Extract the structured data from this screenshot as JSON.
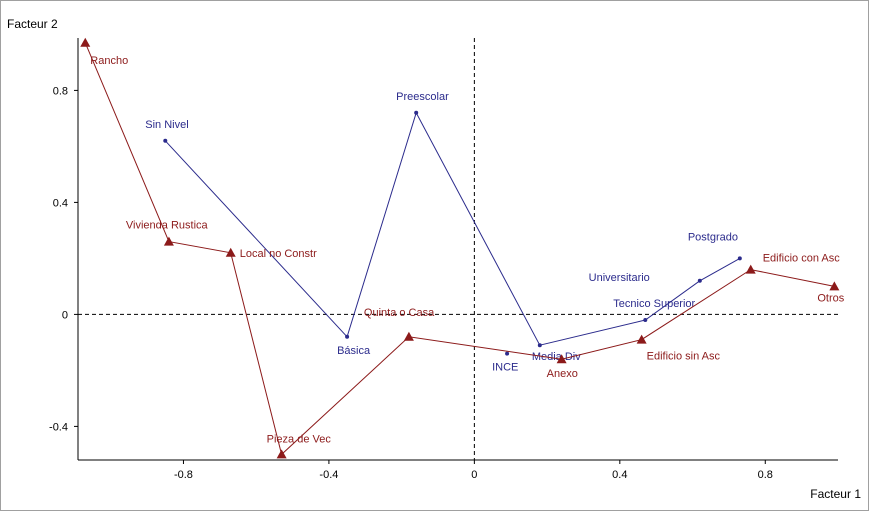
{
  "chart_data": {
    "type": "scatter",
    "title": "",
    "xlabel": "Facteur 1",
    "ylabel": "Facteur 2",
    "xlim": [
      -1.09,
      1.0
    ],
    "ylim": [
      -0.52,
      0.98
    ],
    "xticks": [
      -0.8,
      -0.4,
      0,
      0.4,
      0.8
    ],
    "xtick_labels": [
      "-0.8",
      "-0.4",
      "0",
      "0.4",
      "0.8"
    ],
    "yticks": [
      -0.4,
      0,
      0.4,
      0.8
    ],
    "ytick_labels": [
      "-0.4",
      "0",
      "0.4",
      "0.8"
    ],
    "grid": false,
    "reference_lines": {
      "x": 0,
      "y": 0,
      "style": "dashed"
    },
    "colors": {
      "series1": "#2b2b8c",
      "series2": "#8c1a1a"
    },
    "series": [
      {
        "marker": "circle",
        "color": "#2b2b8c",
        "points": [
          {
            "label": "Sin Nivel",
            "x": -0.85,
            "y": 0.62
          },
          {
            "label": "Básica",
            "x": -0.35,
            "y": -0.08
          },
          {
            "label": "Preescolar",
            "x": -0.16,
            "y": 0.72
          },
          {
            "label": "Media Div",
            "x": 0.18,
            "y": -0.11
          },
          {
            "label": "Tecnico Superior",
            "x": 0.47,
            "y": -0.02
          },
          {
            "label": "Universitario",
            "x": 0.62,
            "y": 0.12
          },
          {
            "label": "Postgrado",
            "x": 0.73,
            "y": 0.2
          }
        ],
        "extra_points": [
          {
            "label": "INCE",
            "x": 0.09,
            "y": -0.14
          }
        ]
      },
      {
        "marker": "triangle",
        "color": "#8c1a1a",
        "points": [
          {
            "label": "Rancho",
            "x": -1.07,
            "y": 0.97
          },
          {
            "label": "Vivienda Rustica",
            "x": -0.84,
            "y": 0.26
          },
          {
            "label": "Local no Constr",
            "x": -0.67,
            "y": 0.22
          },
          {
            "label": "Pieza de Vec",
            "x": -0.53,
            "y": -0.5
          },
          {
            "label": "Quinta o Casa",
            "x": -0.18,
            "y": -0.08
          },
          {
            "label": "Anexo",
            "x": 0.24,
            "y": -0.16
          },
          {
            "label": "Edificio sin Asc",
            "x": 0.46,
            "y": -0.09
          },
          {
            "label": "Edificio con Asc",
            "x": 0.76,
            "y": 0.16
          },
          {
            "label": "Otros",
            "x": 0.99,
            "y": 0.1
          }
        ]
      }
    ]
  }
}
